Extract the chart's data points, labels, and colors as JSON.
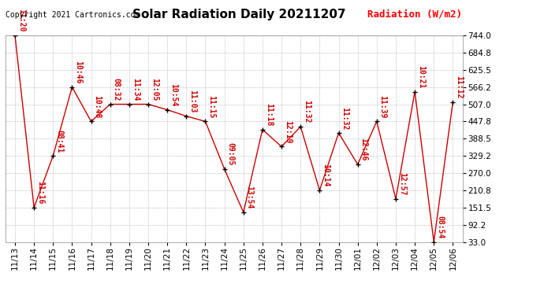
{
  "title": "Solar Radiation Daily 20211207",
  "copyright": "Copyright 2021 Cartronics.com",
  "ylabel": "Radiation (W/m2)",
  "ylabel_color": "#ff0000",
  "line_color": "#cc0000",
  "marker_color": "#000000",
  "bg_color": "#ffffff",
  "grid_color": "#888888",
  "ylim": [
    33.0,
    744.0
  ],
  "yticks": [
    33.0,
    92.2,
    151.5,
    210.8,
    270.0,
    329.2,
    388.5,
    447.8,
    507.0,
    566.2,
    625.5,
    684.8,
    744.0
  ],
  "dates": [
    "11/13",
    "11/14",
    "11/15",
    "11/16",
    "11/17",
    "11/18",
    "11/19",
    "11/20",
    "11/21",
    "11/22",
    "11/23",
    "11/24",
    "11/25",
    "11/26",
    "11/27",
    "11/28",
    "11/29",
    "11/30",
    "12/01",
    "12/02",
    "12/03",
    "12/04",
    "12/05",
    "12/06"
  ],
  "values": [
    744.0,
    151.5,
    329.2,
    566.2,
    447.8,
    507.0,
    507.0,
    507.0,
    488.0,
    466.0,
    447.8,
    284.0,
    135.0,
    420.0,
    361.0,
    430.0,
    210.8,
    408.0,
    300.0,
    447.8,
    181.0,
    550.0,
    33.0,
    515.0
  ],
  "times": [
    "11:20",
    "11:16",
    "08:41",
    "10:46",
    "10:48",
    "08:32",
    "11:34",
    "12:05",
    "10:54",
    "11:03",
    "11:15",
    "09:05",
    "13:54",
    "11:18",
    "12:19",
    "11:32",
    "10:14",
    "11:32",
    "12:46",
    "11:39",
    "12:57",
    "10:21",
    "08:54",
    "11:12"
  ],
  "title_fontsize": 11,
  "tick_fontsize": 7.5,
  "annotation_fontsize": 7,
  "copyright_fontsize": 7,
  "ylabel_fontsize": 9
}
